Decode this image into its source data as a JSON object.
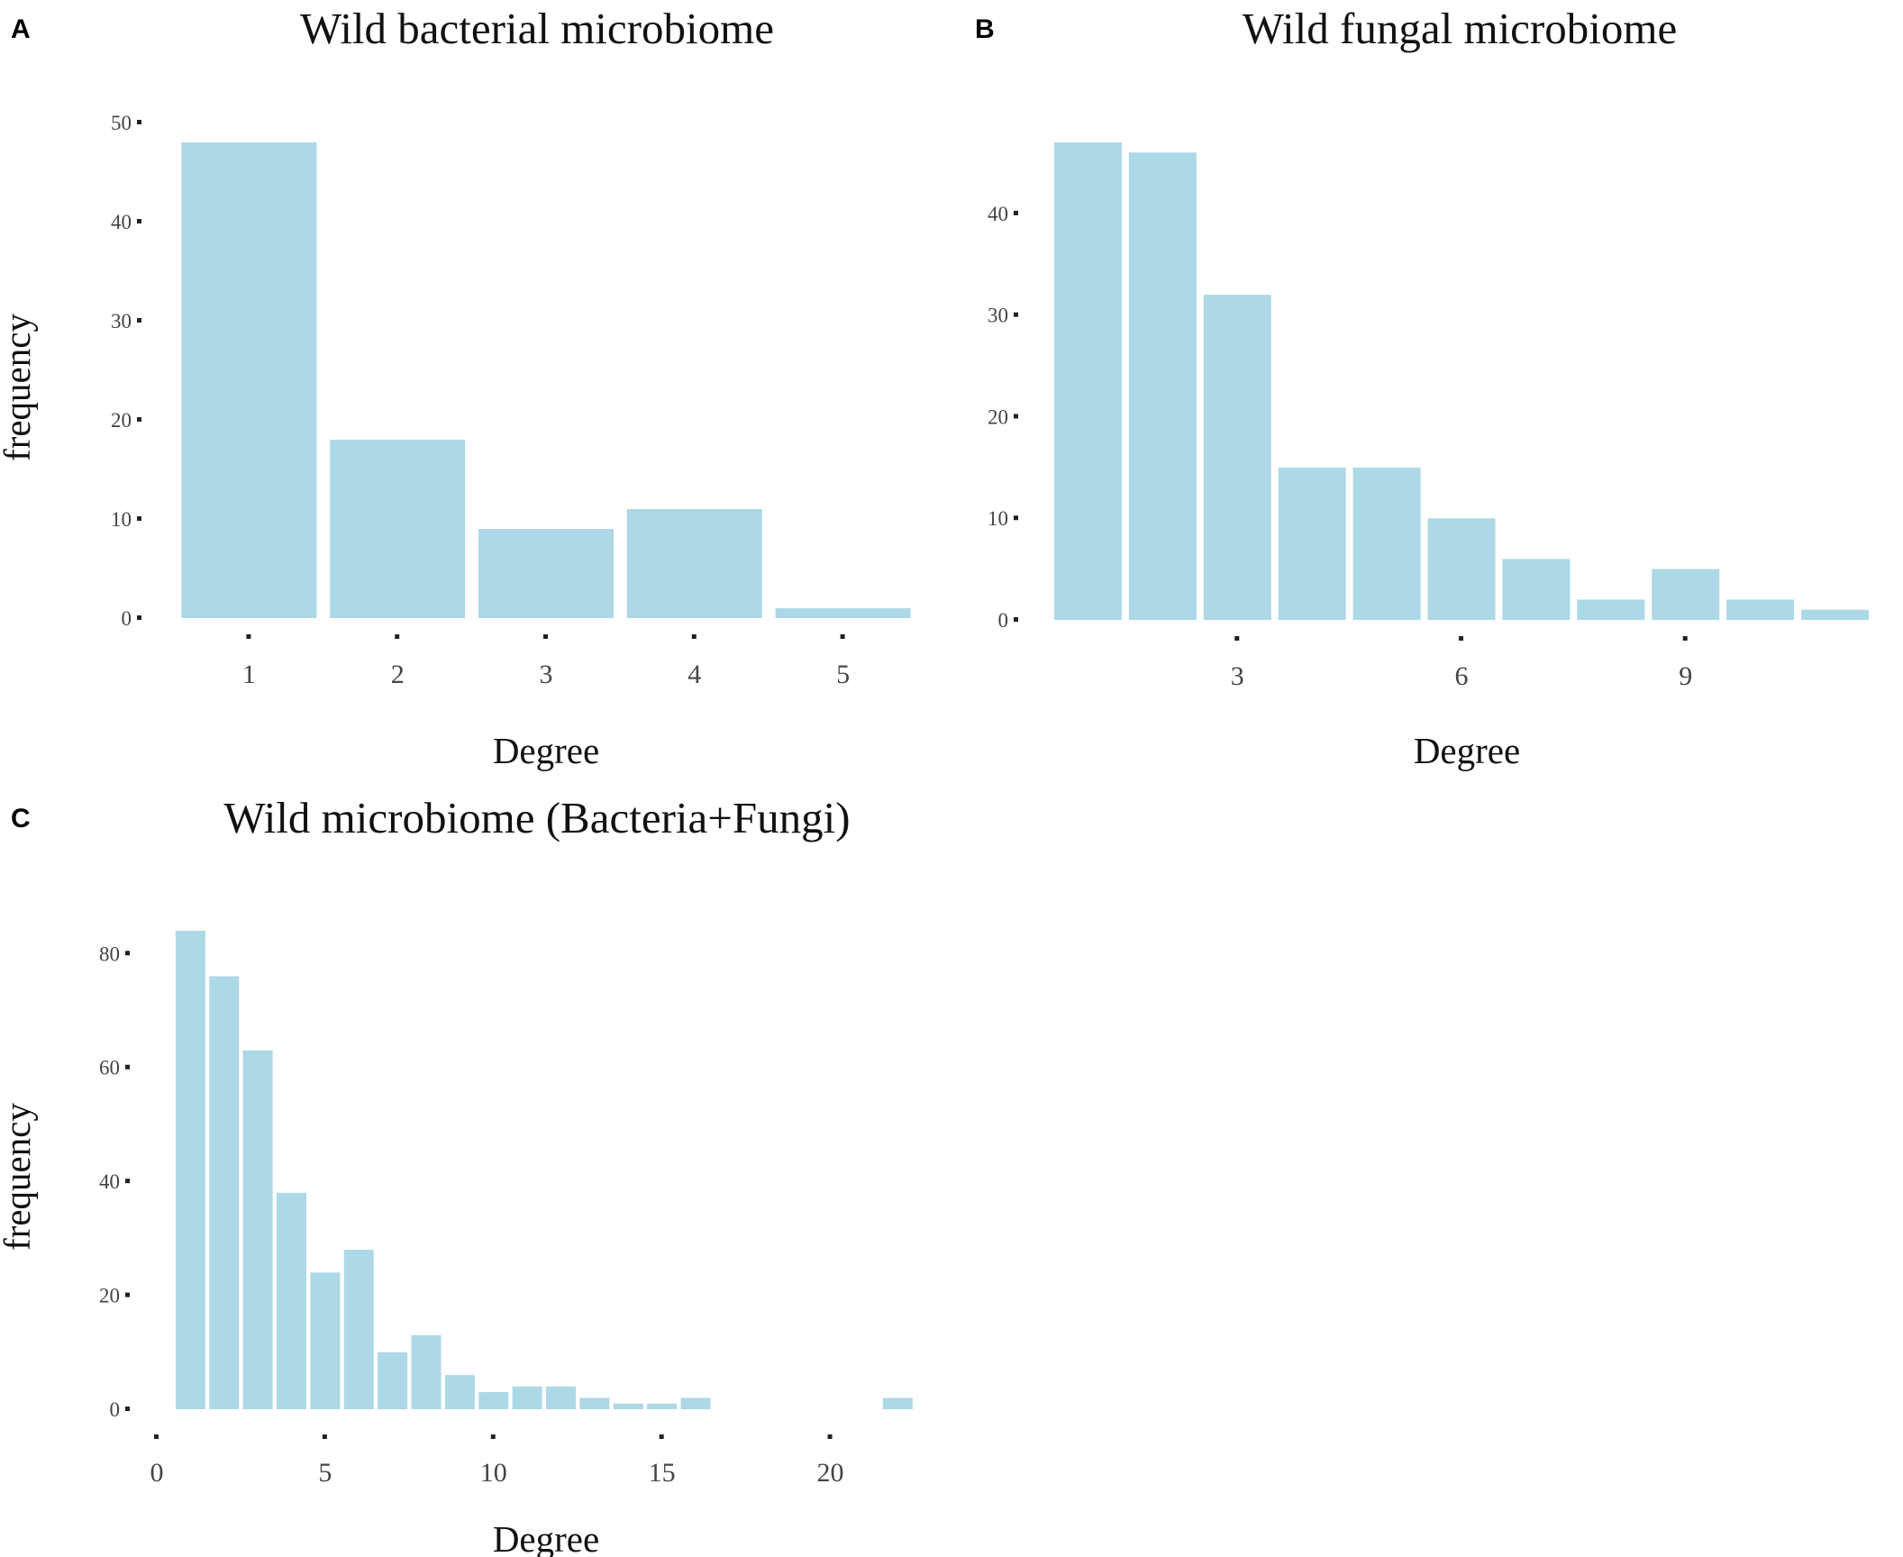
{
  "figure": {
    "background": "#ffffff",
    "bar_color": "#ADD8E6"
  },
  "chart_data": [
    {
      "panel": "A",
      "type": "bar",
      "title": "Wild bacterial microbiome",
      "xlabel": "Degree",
      "ylabel": "frequency",
      "x": [
        1,
        2,
        3,
        4,
        5
      ],
      "values": [
        48,
        18,
        9,
        11,
        1
      ],
      "xlim": [
        0.5,
        5.5
      ],
      "ylim": [
        0,
        50
      ],
      "xticks": [
        1,
        2,
        3,
        4,
        5
      ],
      "yticks": [
        0,
        10,
        20,
        30,
        40,
        50
      ],
      "grid": false,
      "legend": "none"
    },
    {
      "panel": "B",
      "type": "bar",
      "title": "Wild fungal microbiome",
      "xlabel": "Degree",
      "ylabel": "",
      "x": [
        1,
        2,
        3,
        4,
        5,
        6,
        7,
        8,
        9,
        10,
        11
      ],
      "values": [
        47,
        46,
        32,
        15,
        15,
        10,
        6,
        2,
        5,
        2,
        1
      ],
      "xlim": [
        0.5,
        11.5
      ],
      "ylim": [
        0,
        47
      ],
      "xticks": [
        3,
        6,
        9
      ],
      "yticks": [
        0,
        10,
        20,
        30,
        40
      ],
      "grid": false,
      "legend": "none"
    },
    {
      "panel": "C",
      "type": "bar",
      "title": "Wild microbiome (Bacteria+Fungi)",
      "xlabel": "Degree",
      "ylabel": "frequency",
      "x": [
        1,
        2,
        3,
        4,
        5,
        6,
        7,
        8,
        9,
        10,
        11,
        12,
        13,
        14,
        15,
        16,
        22
      ],
      "values": [
        84,
        76,
        63,
        38,
        24,
        28,
        10,
        13,
        6,
        3,
        4,
        4,
        2,
        1,
        1,
        2,
        2
      ],
      "xlim": [
        0,
        22.5
      ],
      "ylim": [
        0,
        84
      ],
      "xticks": [
        0,
        5,
        10,
        15,
        20
      ],
      "yticks": [
        0,
        20,
        40,
        60,
        80
      ],
      "grid": false,
      "legend": "none"
    }
  ]
}
